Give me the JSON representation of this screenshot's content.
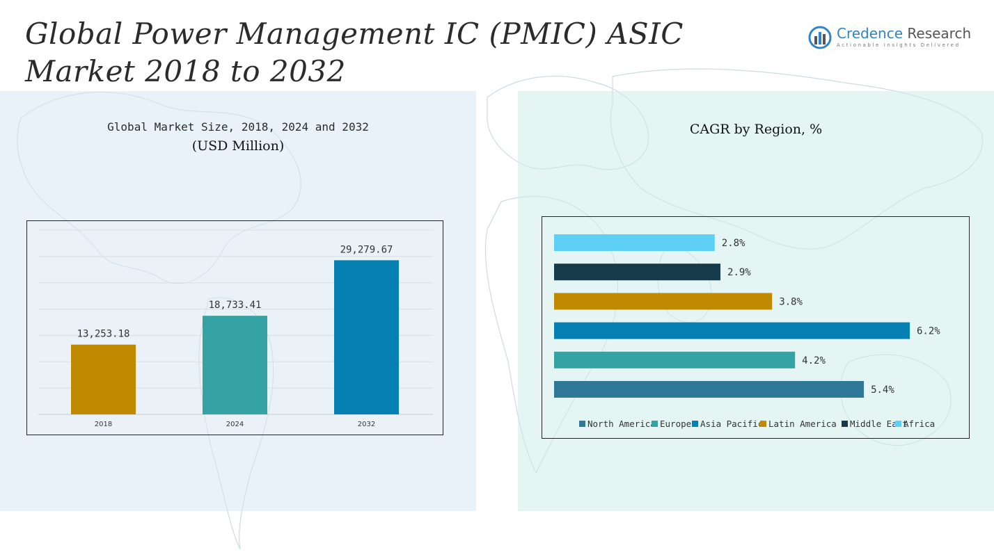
{
  "header": {
    "title": "Global Power Management IC (PMIC) ASIC Market 2018 to 2032"
  },
  "logo": {
    "name_part1": "Credence",
    "name_part2": " Research",
    "tagline": "Actionable Insights Delivered",
    "mark_icon": "credence-logo-icon"
  },
  "chart_data": [
    {
      "type": "bar",
      "title": "Global Market Size, 2018, 2024 and 2032",
      "subtitle": "(USD Million)",
      "categories": [
        "2018",
        "2024",
        "2032"
      ],
      "values": [
        13253.18,
        18733.41,
        29279.67
      ],
      "value_labels": [
        "13,253.18",
        "18,733.41",
        "29,279.67"
      ],
      "colors": [
        "#c08a00",
        "#35a3a3",
        "#0680b3"
      ],
      "ylim": [
        0,
        35000
      ],
      "grid": true
    },
    {
      "type": "bar",
      "orientation": "horizontal",
      "title": "CAGR by Region, %",
      "categories": [
        "Africa",
        "Middle East",
        "Latin America",
        "Asia Pacific",
        "Europe",
        "North America"
      ],
      "values": [
        2.8,
        2.9,
        3.8,
        6.2,
        4.2,
        5.4
      ],
      "value_labels": [
        "2.8%",
        "2.9%",
        "3.8%",
        "6.2%",
        "4.2%",
        "5.4%"
      ],
      "colors": [
        "#5fd0f5",
        "#173b4a",
        "#c08a00",
        "#0680b3",
        "#35a3a3",
        "#2f7898"
      ],
      "xlim": [
        0,
        6.2
      ],
      "legend": {
        "position": "bottom",
        "entries": [
          {
            "label": "North America",
            "color": "#2f7898"
          },
          {
            "label": "Europe",
            "color": "#35a3a3"
          },
          {
            "label": "Asia Pacific",
            "color": "#0680b3"
          },
          {
            "label": "Latin America",
            "color": "#c08a00"
          },
          {
            "label": "Middle East",
            "color": "#173b4a"
          },
          {
            "label": "Africa",
            "color": "#5fd0f5"
          }
        ]
      }
    }
  ]
}
